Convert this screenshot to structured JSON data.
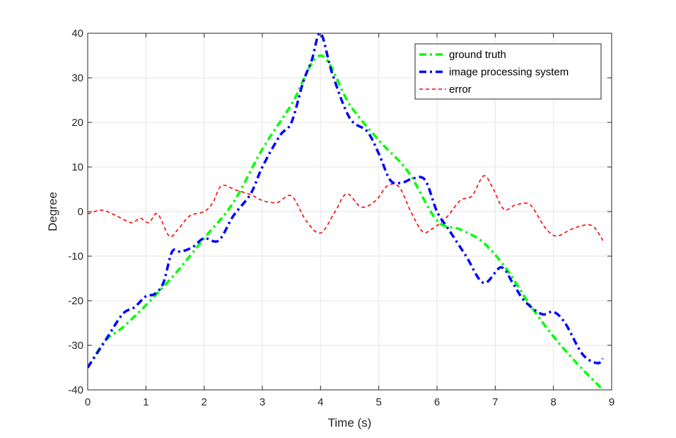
{
  "chart_data": {
    "type": "line",
    "title": "",
    "xlabel": "Time (s)",
    "ylabel": "Degree",
    "xlim": [
      0,
      9
    ],
    "ylim": [
      -40,
      40
    ],
    "xticks": [
      0,
      1,
      2,
      3,
      4,
      5,
      6,
      7,
      8,
      9
    ],
    "yticks": [
      -40,
      -30,
      -20,
      -10,
      0,
      10,
      20,
      30,
      40
    ],
    "grid": true,
    "legend_position": "top-right",
    "series": [
      {
        "name": "ground truth",
        "color": "#00ff00",
        "style": "dash-dot",
        "x": [
          0,
          0.3,
          0.6,
          1.0,
          1.5,
          2.0,
          2.5,
          3.0,
          3.5,
          4.0,
          4.5,
          5.0,
          5.5,
          6.0,
          6.4,
          6.8,
          7.2,
          7.6,
          8.0,
          8.4,
          8.85
        ],
        "y": [
          -35,
          -29,
          -26,
          -21,
          -14,
          -6,
          2,
          14,
          24,
          35,
          24,
          16,
          9,
          -2,
          -4,
          -7,
          -13,
          -21,
          -28,
          -34,
          -40
        ]
      },
      {
        "name": "image processing system",
        "color": "#0000ff",
        "style": "dash-dot",
        "x": [
          0,
          0.3,
          0.6,
          0.8,
          1.0,
          1.15,
          1.3,
          1.45,
          1.6,
          1.8,
          2.0,
          2.25,
          2.5,
          2.8,
          3.0,
          3.3,
          3.5,
          3.7,
          3.85,
          4.0,
          4.2,
          4.5,
          4.8,
          5.0,
          5.2,
          5.4,
          5.6,
          5.8,
          6.0,
          6.2,
          6.5,
          6.8,
          7.1,
          7.3,
          7.5,
          7.8,
          8.0,
          8.2,
          8.5,
          8.75,
          8.85
        ],
        "y": [
          -35,
          -29,
          -23,
          -21.5,
          -19,
          -18.5,
          -16,
          -9,
          -9,
          -8,
          -6,
          -6.5,
          -1,
          4,
          10,
          17,
          20,
          29,
          34,
          40,
          31,
          21,
          18,
          13,
          7,
          6.5,
          7.5,
          7,
          0,
          -4,
          -10,
          -16,
          -12.5,
          -16,
          -20,
          -23,
          -22.5,
          -25,
          -32,
          -34,
          -33
        ]
      },
      {
        "name": "error",
        "color": "#ff0000",
        "style": "dashed",
        "x": [
          0,
          0.25,
          0.5,
          0.75,
          0.9,
          1.05,
          1.2,
          1.4,
          1.55,
          1.75,
          2.0,
          2.15,
          2.3,
          2.55,
          2.8,
          3.0,
          3.25,
          3.5,
          3.75,
          4.0,
          4.25,
          4.45,
          4.7,
          4.95,
          5.15,
          5.35,
          5.55,
          5.75,
          5.9,
          6.15,
          6.4,
          6.6,
          6.8,
          6.95,
          7.15,
          7.35,
          7.6,
          7.85,
          8.05,
          8.3,
          8.55,
          8.7,
          8.85
        ],
        "y": [
          -0.5,
          0.3,
          -1,
          -2.5,
          -1.5,
          -2.5,
          -0.5,
          -5.5,
          -4,
          -1,
          0,
          2,
          5.8,
          4.8,
          3.8,
          2.5,
          2,
          3.5,
          -2,
          -4.8,
          0,
          4,
          1,
          2.5,
          5.8,
          5.5,
          0,
          -4.5,
          -4,
          -1.5,
          2.5,
          3.5,
          8,
          5.5,
          0.5,
          1.5,
          1.5,
          -3.5,
          -5.5,
          -4,
          -3,
          -3.5,
          -6.5
        ]
      }
    ]
  }
}
